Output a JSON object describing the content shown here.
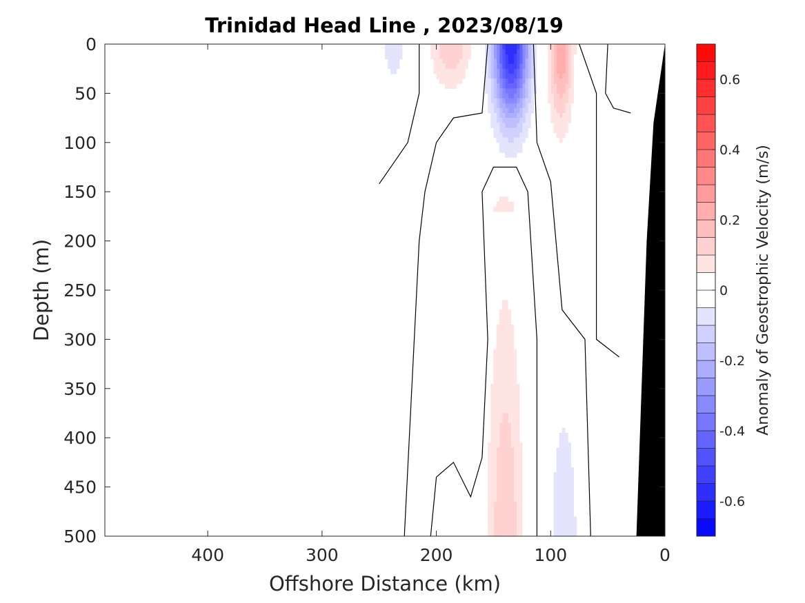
{
  "chart_data": {
    "type": "filled-contour",
    "title": "Trinidad Head Line , 2023/08/19",
    "xlabel": "Offshore Distance (km)",
    "ylabel": "Depth (m)",
    "colorbar_label": "Anomaly of Geostrophic Velocity (m/s)",
    "xlim": [
      490,
      0
    ],
    "ylim": [
      0,
      500
    ],
    "x_ticks": [
      400,
      300,
      200,
      100,
      0
    ],
    "y_ticks": [
      0,
      50,
      100,
      150,
      200,
      250,
      300,
      350,
      400,
      450,
      500
    ],
    "colorbar": {
      "range": [
        -0.7,
        0.7
      ],
      "level_step": 0.05,
      "ticks": [
        0.6,
        0.4,
        0.2,
        0,
        -0.2,
        -0.4,
        -0.6
      ],
      "tick_labels": [
        "0.6",
        "0.4",
        "0.2",
        "0",
        "-0.2",
        "-0.4",
        "-0.6"
      ],
      "positive_color": "#ff0000",
      "negative_color": "#0000ff",
      "zero_color": "#ffffff"
    },
    "features": [
      {
        "name": "surface negative core",
        "x_range": [
          155,
          115
        ],
        "depth_range": [
          0,
          105
        ],
        "min_value": -0.6
      },
      {
        "name": "surface positive core",
        "x_range": [
          105,
          78
        ],
        "depth_range": [
          0,
          110
        ],
        "max_value": 0.25
      },
      {
        "name": "surface positive lobe",
        "x_range": [
          210,
          165
        ],
        "depth_range": [
          0,
          60
        ],
        "max_value": 0.15
      },
      {
        "name": "surface negative lobe",
        "x_range": [
          250,
          225
        ],
        "depth_range": [
          0,
          50
        ],
        "max_value": -0.1
      },
      {
        "name": "surface positive edge",
        "x_range": [
          40,
          30
        ],
        "depth_range": [
          0,
          30
        ],
        "max_value": 0.05
      },
      {
        "name": "deep positive tongue",
        "x_range": [
          160,
          120
        ],
        "depth_range": [
          170,
          500
        ],
        "max_value": 0.15
      },
      {
        "name": "deep negative tongue",
        "x_range": [
          105,
          72
        ],
        "depth_range": [
          300,
          500
        ],
        "min_value": -0.1
      }
    ],
    "bathymetry": {
      "color": "#000000",
      "profile": [
        [
          0,
          0
        ],
        [
          10,
          80
        ],
        [
          16,
          200
        ],
        [
          25,
          500
        ]
      ]
    },
    "zero_contours": [
      [
        [
          250,
          142
        ],
        [
          225,
          100
        ],
        [
          215,
          50
        ],
        [
          215,
          0
        ]
      ],
      [
        [
          228,
          500
        ],
        [
          215,
          200
        ],
        [
          210,
          150
        ],
        [
          200,
          100
        ],
        [
          185,
          75
        ],
        [
          160,
          70
        ],
        [
          155,
          0
        ]
      ],
      [
        [
          205,
          500
        ],
        [
          200,
          440
        ],
        [
          185,
          425
        ],
        [
          170,
          460
        ],
        [
          160,
          420
        ],
        [
          155,
          300
        ],
        [
          160,
          150
        ],
        [
          150,
          125
        ],
        [
          130,
          125
        ],
        [
          120,
          150
        ],
        [
          112,
          300
        ],
        [
          112,
          500
        ]
      ],
      [
        [
          115,
          0
        ],
        [
          112,
          100
        ],
        [
          100,
          140
        ],
        [
          90,
          270
        ],
        [
          70,
          300
        ],
        [
          65,
          500
        ]
      ],
      [
        [
          75,
          0
        ],
        [
          60,
          50
        ],
        [
          60,
          300
        ],
        [
          40,
          318
        ]
      ],
      [
        [
          50,
          0
        ],
        [
          52,
          50
        ],
        [
          45,
          65
        ],
        [
          30,
          70
        ]
      ]
    ]
  }
}
